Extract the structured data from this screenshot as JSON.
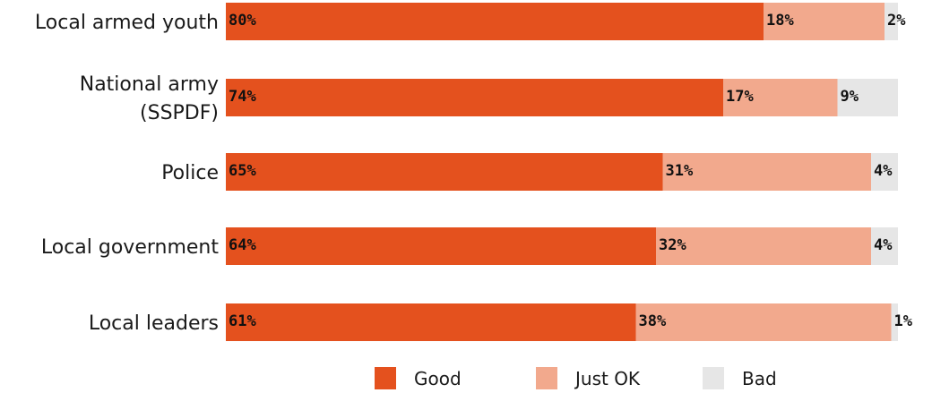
{
  "chart_data": {
    "type": "bar",
    "orientation": "horizontal",
    "stacked": true,
    "value_unit": "%",
    "xlim": [
      0,
      100
    ],
    "grid": false,
    "legend_position": "bottom",
    "categories": [
      [
        "Local armed youth"
      ],
      [
        "National army",
        "(SSPDF)"
      ],
      [
        "Police"
      ],
      [
        "Local government"
      ],
      [
        "Local leaders"
      ]
    ],
    "series": [
      {
        "name": "Good",
        "color": "#E4511E",
        "values": [
          80,
          74,
          65,
          64,
          61
        ]
      },
      {
        "name": "Just OK",
        "color": "#F2A98D",
        "values": [
          18,
          17,
          31,
          32,
          38
        ]
      },
      {
        "name": "Bad",
        "color": "#E6E6E6",
        "values": [
          2,
          9,
          4,
          4,
          1
        ]
      }
    ]
  }
}
